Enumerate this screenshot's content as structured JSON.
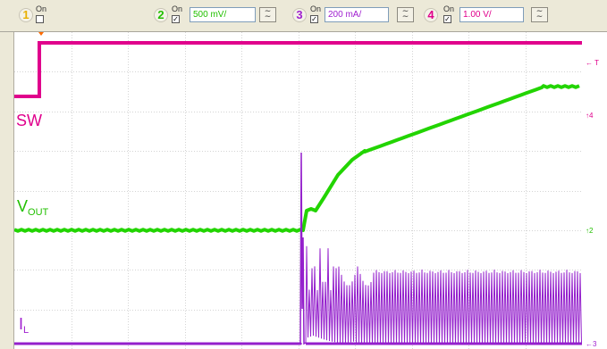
{
  "channels": [
    {
      "num": "1",
      "on_label": "On",
      "checked": false,
      "color": "#e8b000"
    },
    {
      "num": "2",
      "on_label": "On",
      "checked": true,
      "color": "#22c000",
      "scale": "500 mV/"
    },
    {
      "num": "3",
      "on_label": "On",
      "checked": true,
      "color": "#a020d0",
      "scale": "200 mA/"
    },
    {
      "num": "4",
      "on_label": "On",
      "checked": true,
      "color": "#e0008c",
      "scale": "1.00 V/"
    }
  ],
  "coupling_icon": "ac-dc-coupling-icon",
  "checkmark": "✓",
  "trace_labels": {
    "sw": "SW",
    "vout_main": "V",
    "vout_sub": "OUT",
    "il_main": "I",
    "il_sub": "L"
  },
  "markers": {
    "trigger": "T",
    "ch4": "4",
    "ch2": "2",
    "ch3": "3"
  },
  "colors": {
    "sw": "#e0008c",
    "vout": "#22d400",
    "il": "#9420cc",
    "grid": "#d4d4d4",
    "trigger_marker": "#ff6a00"
  }
}
